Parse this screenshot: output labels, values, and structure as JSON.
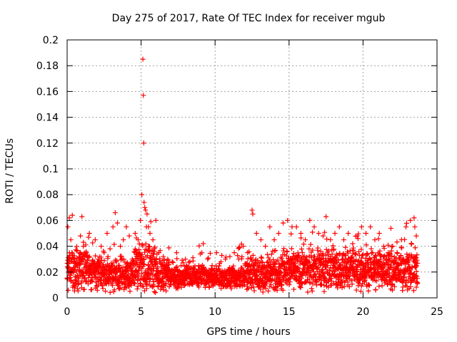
{
  "chart_data": {
    "type": "scatter",
    "title": "Day 275 of 2017, Rate Of TEC Index for receiver mgub",
    "xlabel": "GPS time / hours",
    "ylabel": "ROTI / TECUs",
    "xlim": [
      0,
      25
    ],
    "ylim": [
      0,
      0.2
    ],
    "xticks": [
      0,
      5,
      10,
      15,
      20,
      25
    ],
    "yticks": [
      0,
      0.02,
      0.04,
      0.06,
      0.08,
      0.1,
      0.12,
      0.14,
      0.16,
      0.18,
      0.2
    ],
    "grid": true,
    "marker": "+",
    "series": [
      {
        "name": "ROTI",
        "color": "#ff0000",
        "x": [
          0.05,
          0.15,
          0.25,
          0.35,
          0.5,
          0.7,
          0.9,
          1.0,
          1.1,
          1.3,
          1.5,
          1.7,
          1.9,
          2.1,
          2.3,
          2.5,
          2.7,
          2.9,
          3.1,
          3.25,
          3.4,
          3.6,
          3.8,
          4.0,
          4.2,
          4.4,
          4.6,
          4.8,
          4.95,
          5.05,
          5.12,
          5.15,
          5.18,
          5.2,
          5.25,
          5.3,
          5.4,
          5.5,
          5.6,
          5.8,
          6.0,
          6.2,
          6.5,
          6.8,
          7.1,
          7.4,
          7.7,
          8.0,
          8.3,
          8.6,
          8.9,
          9.2,
          9.5,
          9.8,
          10.1,
          10.4,
          10.7,
          11.0,
          11.3,
          11.6,
          11.9,
          12.2,
          12.5,
          12.55,
          12.8,
          13.1,
          13.4,
          13.7,
          14.0,
          14.3,
          14.6,
          14.9,
          15.2,
          15.5,
          15.8,
          16.1,
          16.4,
          16.7,
          17.0,
          17.3,
          17.5,
          17.8,
          18.1,
          18.4,
          18.7,
          19.0,
          19.3,
          19.6,
          19.9,
          20.2,
          20.5,
          20.8,
          21.1,
          21.4,
          21.7,
          22.0,
          22.3,
          22.6,
          22.9,
          23.2,
          23.45,
          23.5,
          23.6
        ],
        "y": [
          0.055,
          0.062,
          0.045,
          0.064,
          0.03,
          0.025,
          0.048,
          0.063,
          0.04,
          0.035,
          0.05,
          0.028,
          0.045,
          0.03,
          0.04,
          0.035,
          0.05,
          0.038,
          0.055,
          0.066,
          0.058,
          0.04,
          0.045,
          0.055,
          0.048,
          0.03,
          0.05,
          0.045,
          0.06,
          0.08,
          0.185,
          0.157,
          0.12,
          0.074,
          0.07,
          0.068,
          0.065,
          0.055,
          0.05,
          0.045,
          0.06,
          0.035,
          0.032,
          0.03,
          0.028,
          0.035,
          0.025,
          0.03,
          0.028,
          0.022,
          0.025,
          0.042,
          0.03,
          0.025,
          0.035,
          0.028,
          0.03,
          0.032,
          0.035,
          0.03,
          0.04,
          0.035,
          0.068,
          0.065,
          0.05,
          0.045,
          0.04,
          0.055,
          0.045,
          0.05,
          0.058,
          0.06,
          0.055,
          0.055,
          0.05,
          0.045,
          0.06,
          0.055,
          0.05,
          0.048,
          0.063,
          0.045,
          0.05,
          0.055,
          0.045,
          0.05,
          0.042,
          0.048,
          0.055,
          0.05,
          0.055,
          0.045,
          0.05,
          0.04,
          0.035,
          0.04,
          0.035,
          0.045,
          0.055,
          0.06,
          0.062,
          0.055,
          0.048
        ]
      }
    ],
    "density_note": "dense band of points roughly between 0.005 and 0.035 across 0-23.7 hours"
  }
}
